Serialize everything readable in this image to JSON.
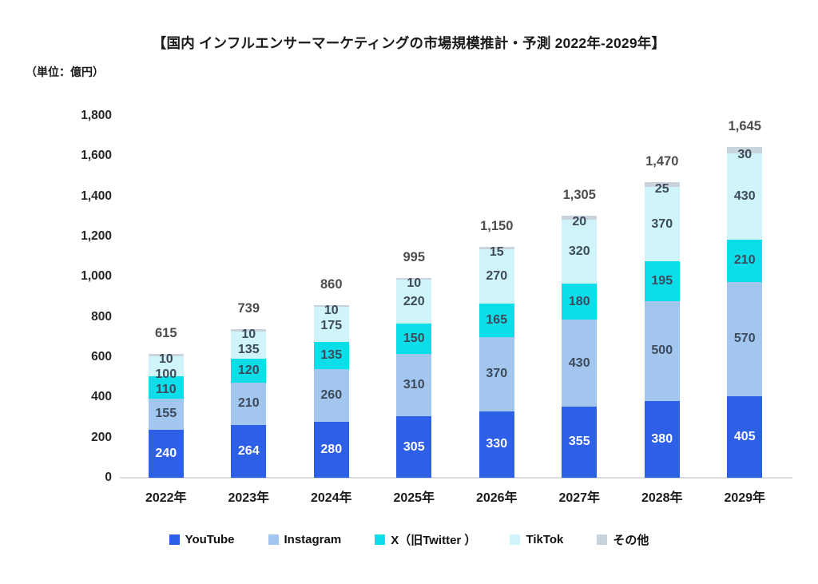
{
  "title": "【国内 インフルエンサーマーケティングの市場規模推計・予測 2022年-2029年】",
  "unit_label": "（単位：億円）",
  "chart_data": {
    "type": "bar",
    "stacked": true,
    "title": "【国内 インフルエンサーマーケティングの市場規模推計・予測 2022年-2029年】",
    "unit": "億円",
    "categories": [
      "2022年",
      "2023年",
      "2024年",
      "2025年",
      "2026年",
      "2027年",
      "2028年",
      "2029年"
    ],
    "series": [
      {
        "name": "YouTube",
        "color": "#2d5fe7",
        "label_color": "#ffffff",
        "values": [
          240,
          264,
          280,
          305,
          330,
          355,
          380,
          405
        ]
      },
      {
        "name": "Instagram",
        "color": "#a3c6ee",
        "label_color": "#3d4a5c",
        "values": [
          155,
          210,
          260,
          310,
          370,
          430,
          500,
          570
        ]
      },
      {
        "name": "X（旧Twitter ）",
        "color": "#0cdee9",
        "label_color": "#3d4a5c",
        "values": [
          110,
          120,
          135,
          150,
          165,
          180,
          195,
          210
        ]
      },
      {
        "name": "TikTok",
        "color": "#cff4f9",
        "label_color": "#3d4a5c",
        "values": [
          100,
          135,
          175,
          220,
          270,
          320,
          370,
          430
        ]
      },
      {
        "name": "その他",
        "color": "#c9d3db",
        "label_color": "#3d4a5c",
        "values": [
          10,
          10,
          10,
          10,
          15,
          20,
          25,
          30
        ]
      }
    ],
    "totals": [
      615,
      739,
      860,
      995,
      1150,
      1305,
      1470,
      1645
    ],
    "total_labels": [
      "615",
      "739",
      "860",
      "995",
      "1,150",
      "1,305",
      "1,470",
      "1,645"
    ],
    "segment_labels": [
      [
        "240",
        "264",
        "280",
        "305",
        "330",
        "355",
        "380",
        "405"
      ],
      [
        "155",
        "210",
        "260",
        "310",
        "370",
        "430",
        "500",
        "570"
      ],
      [
        "110",
        "120",
        "135",
        "150",
        "165",
        "180",
        "195",
        "210"
      ],
      [
        "100",
        "135",
        "175",
        "220",
        "270",
        "320",
        "370",
        "430"
      ],
      [
        "10",
        "10",
        "10",
        "10",
        "15",
        "20",
        "25",
        "30"
      ]
    ],
    "xlabel": "",
    "ylabel": "",
    "y_axis": {
      "min": 0,
      "max": 1800,
      "step": 200,
      "tick_labels": [
        "0",
        "200",
        "400",
        "600",
        "800",
        "1,000",
        "1,200",
        "1,400",
        "1,600",
        "1,800"
      ]
    },
    "grid": false,
    "legend_position": "bottom"
  }
}
